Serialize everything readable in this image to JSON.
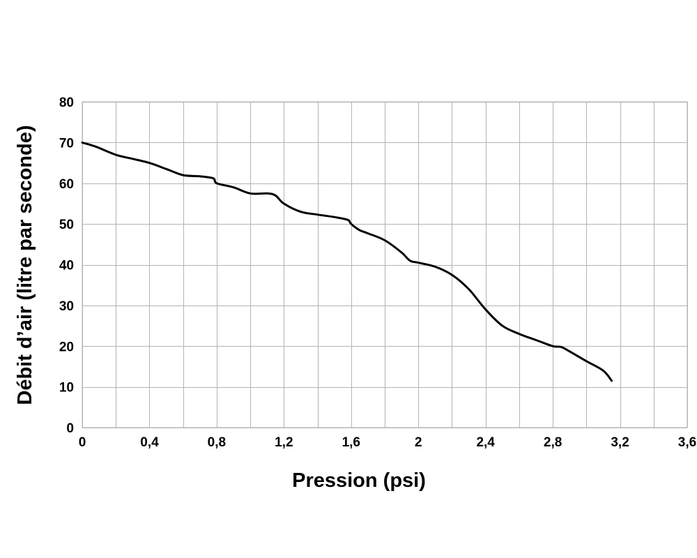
{
  "chart_data": {
    "type": "line",
    "xlabel": "Pression (psi)",
    "ylabel": "Débit d’air (litre par seconde)",
    "xlim": [
      0,
      3.6
    ],
    "ylim": [
      0,
      80
    ],
    "grid": true,
    "x_ticks": [
      0,
      0.2,
      0.4,
      0.6,
      0.8,
      1.0,
      1.2,
      1.4,
      1.6,
      1.8,
      2.0,
      2.2,
      2.4,
      2.6,
      2.8,
      3.0,
      3.2,
      3.4,
      3.6
    ],
    "x_tick_labels": [
      {
        "value": 0,
        "label": "0"
      },
      {
        "value": 0.4,
        "label": "0,4"
      },
      {
        "value": 0.8,
        "label": "0,8"
      },
      {
        "value": 1.2,
        "label": "1,2"
      },
      {
        "value": 1.6,
        "label": "1,6"
      },
      {
        "value": 2.0,
        "label": "2"
      },
      {
        "value": 2.4,
        "label": "2,4"
      },
      {
        "value": 2.8,
        "label": "2,8"
      },
      {
        "value": 3.2,
        "label": "3,2"
      },
      {
        "value": 3.6,
        "label": "3,6"
      }
    ],
    "y_ticks": [
      0,
      10,
      20,
      30,
      40,
      50,
      60,
      70,
      80
    ],
    "y_tick_labels": [
      {
        "value": 0,
        "label": "0"
      },
      {
        "value": 10,
        "label": "10"
      },
      {
        "value": 20,
        "label": "20"
      },
      {
        "value": 30,
        "label": "30"
      },
      {
        "value": 40,
        "label": "40"
      },
      {
        "value": 50,
        "label": "50"
      },
      {
        "value": 60,
        "label": "60"
      },
      {
        "value": 70,
        "label": "70"
      },
      {
        "value": 80,
        "label": "80"
      }
    ],
    "series": [
      {
        "color": "#000000",
        "x": [
          0,
          0.08,
          0.2,
          0.3,
          0.4,
          0.5,
          0.6,
          0.7,
          0.78,
          0.8,
          0.9,
          1.0,
          1.1,
          1.15,
          1.2,
          1.3,
          1.4,
          1.5,
          1.58,
          1.6,
          1.65,
          1.7,
          1.8,
          1.9,
          1.95,
          2.0,
          2.1,
          2.2,
          2.3,
          2.4,
          2.5,
          2.6,
          2.7,
          2.8,
          2.85,
          2.9,
          3.0,
          3.1,
          3.15
        ],
        "y": [
          70,
          69,
          67,
          66,
          65,
          63.5,
          62,
          61.7,
          61.2,
          60,
          59,
          57.5,
          57.5,
          57,
          55,
          53,
          52.3,
          51.7,
          51,
          50,
          48.5,
          47.7,
          46,
          43,
          41,
          40.5,
          39.5,
          37.5,
          34,
          29,
          25,
          23,
          21.5,
          20,
          19.8,
          18.7,
          16.3,
          14,
          11.5
        ]
      }
    ]
  }
}
